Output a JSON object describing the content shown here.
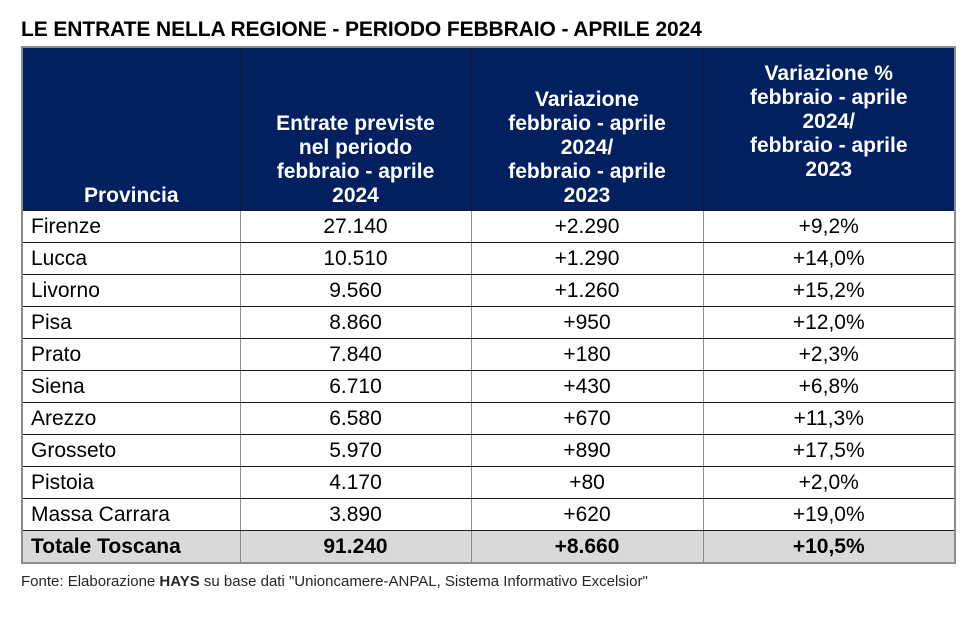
{
  "title": "LE ENTRATE NELLA REGIONE - PERIODO FEBBRAIO - APRILE 2024",
  "table": {
    "headers": {
      "provincia": "Provincia",
      "entrate": [
        "Entrate previste",
        "nel periodo",
        "febbraio - aprile",
        "2024"
      ],
      "variazione": [
        "Variazione",
        "febbraio - aprile",
        "2024/",
        "febbraio - aprile",
        "2023"
      ],
      "variazione_pct": [
        "Variazione %",
        "febbraio - aprile",
        "2024/",
        "febbraio - aprile",
        "2023"
      ]
    },
    "header_color": "#002060",
    "rows": [
      {
        "provincia": "Firenze",
        "entrate": "27.140",
        "variazione": "+2.290",
        "variazione_pct": "+9,2%"
      },
      {
        "provincia": "Lucca",
        "entrate": "10.510",
        "variazione": "+1.290",
        "variazione_pct": "+14,0%"
      },
      {
        "provincia": "Livorno",
        "entrate": "9.560",
        "variazione": "+1.260",
        "variazione_pct": "+15,2%"
      },
      {
        "provincia": "Pisa",
        "entrate": "8.860",
        "variazione": "+950",
        "variazione_pct": "+12,0%"
      },
      {
        "provincia": "Prato",
        "entrate": "7.840",
        "variazione": "+180",
        "variazione_pct": "+2,3%"
      },
      {
        "provincia": "Siena",
        "entrate": "6.710",
        "variazione": "+430",
        "variazione_pct": "+6,8%"
      },
      {
        "provincia": "Arezzo",
        "entrate": "6.580",
        "variazione": "+670",
        "variazione_pct": "+11,3%"
      },
      {
        "provincia": "Grosseto",
        "entrate": "5.970",
        "variazione": "+890",
        "variazione_pct": "+17,5%"
      },
      {
        "provincia": "Pistoia",
        "entrate": "4.170",
        "variazione": "+80",
        "variazione_pct": "+2,0%"
      },
      {
        "provincia": "Massa Carrara",
        "entrate": "3.890",
        "variazione": "+620",
        "variazione_pct": "+19,0%"
      }
    ],
    "total": {
      "provincia": "Totale Toscana",
      "entrate": "91.240",
      "variazione": "+8.660",
      "variazione_pct": "+10,5%"
    }
  },
  "source": {
    "prefix": "Fonte: Elaborazione ",
    "brand": "HAYS",
    "suffix": " su base dati \"Unioncamere-ANPAL, Sistema Informativo Excelsior\""
  }
}
